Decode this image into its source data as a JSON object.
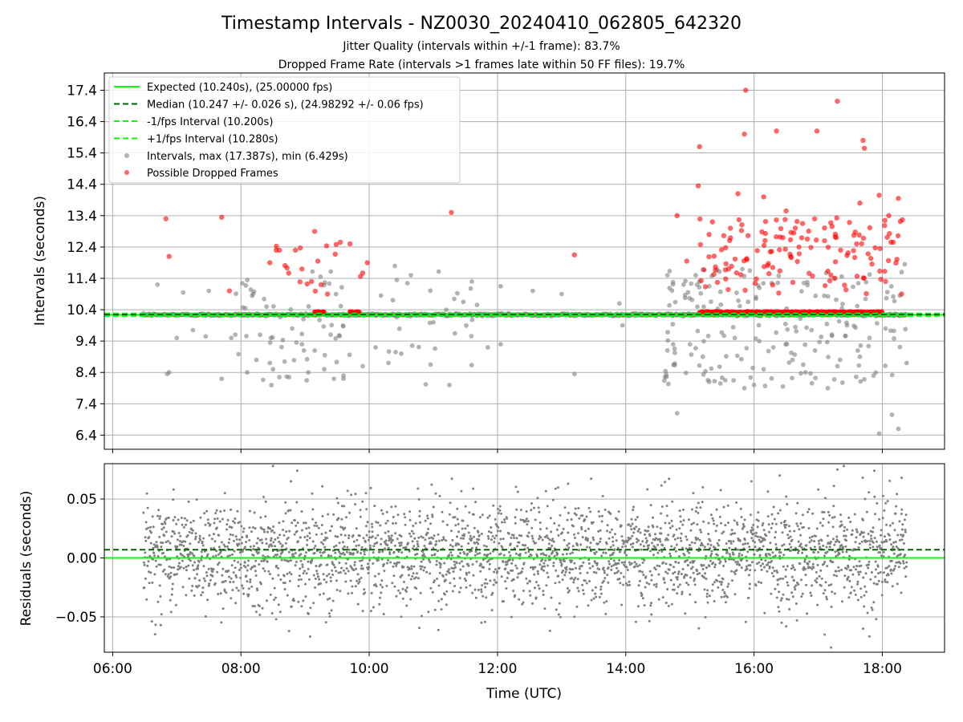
{
  "title": "Timestamp Intervals - NZ0030_20240410_062805_642320",
  "subtitle1": "Jitter Quality (intervals within +/-1 frame): 83.7%",
  "subtitle2": "Dropped Frame Rate (intervals >1 frames late within 50 FF files): 19.7%",
  "colors": {
    "expected": "#00ff00",
    "median": "#006400",
    "interval_points": "#808080",
    "dropped_points": "#ff0000",
    "grid": "#b0b0b0"
  },
  "chart_data": [
    {
      "type": "scatter",
      "panel": "intervals",
      "ylabel": "Intervals (seconds)",
      "ylim": [
        5.95,
        17.95
      ],
      "xlim_hours": [
        5.87,
        18.97
      ],
      "yticks": [
        "6.4",
        "7.4",
        "8.4",
        "9.4",
        "10.4",
        "11.4",
        "12.4",
        "13.4",
        "14.4",
        "15.4",
        "16.4",
        "17.4"
      ],
      "grid": true,
      "legend_position": "top-left",
      "legend": [
        "Expected (10.240s), (25.00000 fps)",
        "Median (10.247 +/- 0.026 s), (24.98292 +/- 0.06 fps)",
        "-1/fps Interval (10.200s)",
        "+1/fps Interval (10.280s)",
        "Intervals, max (17.387s), min (6.429s)",
        "Possible Dropped Frames"
      ],
      "lines": {
        "expected": 10.24,
        "median": 10.247,
        "minus_one_frame": 10.2,
        "plus_one_frame": 10.28
      },
      "series": [
        {
          "name": "Intervals, max (17.387s), min (6.429s)",
          "color": "#808080",
          "baseline": 10.24,
          "time_span_hours": [
            6.48,
            18.38
          ],
          "max": 17.387,
          "min": 6.429,
          "sample_points": [
            [
              6.7,
              11.2
            ],
            [
              6.85,
              8.35
            ],
            [
              6.88,
              8.4
            ],
            [
              7.0,
              9.5
            ],
            [
              7.1,
              10.95
            ],
            [
              7.25,
              9.75
            ],
            [
              7.45,
              9.55
            ],
            [
              7.5,
              11.0
            ],
            [
              7.7,
              8.2
            ],
            [
              7.85,
              9.5
            ],
            [
              8.1,
              11.35
            ],
            [
              8.3,
              9.6
            ],
            [
              8.4,
              10.5
            ],
            [
              8.45,
              8.7
            ],
            [
              8.5,
              8.5
            ],
            [
              8.6,
              8.25
            ],
            [
              8.75,
              8.25
            ],
            [
              8.8,
              9.8
            ],
            [
              8.95,
              9.3
            ],
            [
              9.05,
              8.4
            ],
            [
              9.15,
              9.1
            ],
            [
              9.3,
              8.5
            ],
            [
              9.4,
              9.6
            ],
            [
              9.45,
              8.2
            ],
            [
              9.6,
              8.3
            ],
            [
              9.9,
              8.6
            ],
            [
              10.1,
              9.2
            ],
            [
              10.3,
              8.7
            ],
            [
              10.4,
              11.8
            ],
            [
              10.5,
              9.0
            ],
            [
              10.65,
              11.5
            ],
            [
              11.0,
              10.0
            ],
            [
              11.2,
              10.4
            ],
            [
              11.25,
              8.0
            ],
            [
              11.6,
              11.3
            ],
            [
              11.85,
              9.2
            ],
            [
              12.05,
              11.15
            ],
            [
              12.05,
              9.3
            ],
            [
              12.55,
              11.0
            ],
            [
              13.0,
              10.9
            ],
            [
              13.2,
              8.35
            ],
            [
              13.9,
              10.6
            ],
            [
              13.95,
              9.9
            ],
            [
              14.65,
              11.5
            ],
            [
              14.65,
              9.1
            ],
            [
              14.8,
              7.1
            ],
            [
              14.9,
              11.2
            ],
            [
              15.0,
              9.3
            ],
            [
              15.2,
              8.9
            ],
            [
              15.3,
              8.1
            ],
            [
              15.55,
              8.15
            ],
            [
              15.7,
              9.5
            ],
            [
              15.85,
              7.9
            ],
            [
              16.0,
              8.0
            ],
            [
              16.15,
              8.5
            ],
            [
              16.3,
              9.2
            ],
            [
              16.45,
              7.95
            ],
            [
              16.6,
              8.8
            ],
            [
              16.8,
              8.4
            ],
            [
              16.95,
              9.1
            ],
            [
              17.15,
              7.9
            ],
            [
              17.3,
              8.6
            ],
            [
              17.45,
              9.9
            ],
            [
              17.65,
              8.9
            ],
            [
              17.8,
              9.5
            ],
            [
              17.95,
              6.45
            ],
            [
              18.05,
              9.8
            ],
            [
              18.15,
              7.05
            ],
            [
              18.25,
              6.6
            ],
            [
              18.3,
              11.6
            ],
            [
              18.35,
              11.85
            ],
            [
              18.38,
              8.7
            ]
          ]
        },
        {
          "name": "Possible Dropped Frames",
          "color": "#ff0000",
          "sample_points": [
            [
              6.83,
              13.3
            ],
            [
              6.88,
              12.1
            ],
            [
              7.7,
              13.35
            ],
            [
              7.82,
              11.0
            ],
            [
              8.45,
              11.9
            ],
            [
              8.55,
              12.3
            ],
            [
              8.6,
              12.3
            ],
            [
              8.85,
              12.3
            ],
            [
              8.95,
              11.7
            ],
            [
              9.1,
              11.3
            ],
            [
              9.15,
              12.9
            ],
            [
              9.2,
              11.95
            ],
            [
              9.35,
              10.9
            ],
            [
              9.55,
              12.55
            ],
            [
              9.7,
              12.5
            ],
            [
              9.97,
              11.9
            ],
            [
              11.28,
              13.5
            ],
            [
              13.2,
              12.15
            ],
            [
              14.8,
              13.4
            ],
            [
              14.95,
              11.95
            ],
            [
              15.15,
              15.6
            ],
            [
              15.13,
              14.35
            ],
            [
              15.35,
              13.2
            ],
            [
              15.6,
              11.7
            ],
            [
              15.75,
              14.1
            ],
            [
              15.87,
              17.4
            ],
            [
              15.85,
              16.0
            ],
            [
              16.15,
              14.0
            ],
            [
              16.35,
              16.1
            ],
            [
              16.45,
              12.7
            ],
            [
              16.5,
              13.55
            ],
            [
              16.7,
              12.4
            ],
            [
              16.98,
              16.1
            ],
            [
              17.1,
              12.6
            ],
            [
              17.3,
              17.05
            ],
            [
              17.35,
              12.3
            ],
            [
              17.6,
              12.5
            ],
            [
              17.65,
              13.8
            ],
            [
              17.7,
              15.8
            ],
            [
              17.72,
              15.55
            ],
            [
              17.95,
              14.05
            ],
            [
              18.05,
              11.3
            ],
            [
              18.1,
              13.4
            ],
            [
              18.25,
              13.95
            ],
            [
              18.3,
              10.9
            ]
          ],
          "clusters_near_10_28": [
            [
              9.15,
              9.3
            ],
            [
              9.7,
              9.85
            ],
            [
              15.15,
              18.0
            ]
          ]
        }
      ]
    },
    {
      "type": "scatter",
      "panel": "residuals",
      "xlabel": "Time (UTC)",
      "ylabel": "Residuals (seconds)",
      "ylim": [
        -0.08,
        0.08
      ],
      "yticks": [
        "−0.05",
        "0.00",
        "0.05"
      ],
      "xticks": [
        "06:00",
        "08:00",
        "10:00",
        "12:00",
        "14:00",
        "16:00",
        "18:00"
      ],
      "xticks_hours": [
        6,
        8,
        10,
        12,
        14,
        16,
        18
      ],
      "grid": true,
      "lines": {
        "zero": 0.0,
        "median_offset": 0.007
      },
      "series": [
        {
          "name": "Residuals",
          "color": "#808080",
          "time_span_hours": [
            6.48,
            18.38
          ],
          "max": 0.078,
          "min": -0.076,
          "sample_points": [
            [
              6.75,
              -0.057
            ],
            [
              6.95,
              0.058
            ],
            [
              7.75,
              0.055
            ],
            [
              8.5,
              0.078
            ],
            [
              8.55,
              -0.052
            ],
            [
              8.75,
              -0.062
            ],
            [
              8.78,
              0.065
            ],
            [
              9.9,
              -0.045
            ],
            [
              10.5,
              -0.05
            ],
            [
              11.75,
              -0.055
            ],
            [
              13.1,
              0.063
            ],
            [
              13.2,
              -0.05
            ],
            [
              14.4,
              -0.048
            ],
            [
              15.2,
              0.06
            ],
            [
              16.4,
              0.07
            ],
            [
              16.5,
              -0.058
            ],
            [
              17.0,
              0.058
            ],
            [
              17.1,
              -0.065
            ],
            [
              17.2,
              -0.076
            ],
            [
              17.3,
              0.075
            ],
            [
              17.4,
              0.078
            ],
            [
              17.7,
              -0.06
            ],
            [
              18.3,
              0.068
            ]
          ]
        }
      ]
    }
  ]
}
